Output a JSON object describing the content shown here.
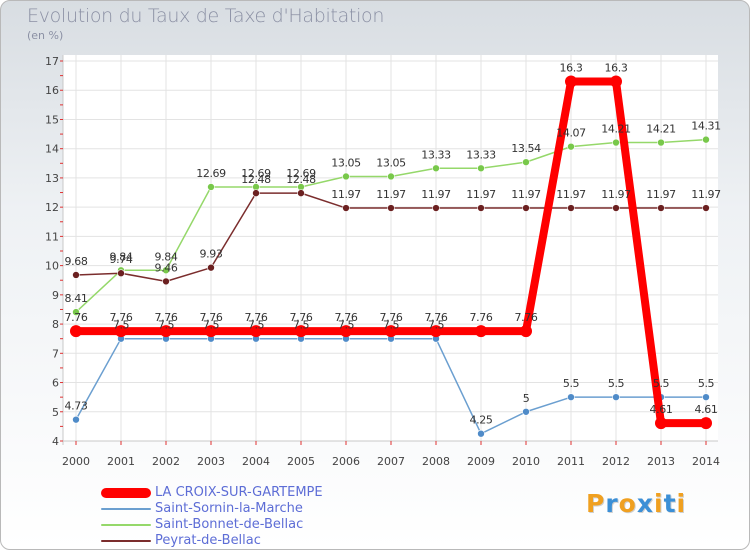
{
  "header": {
    "title": "Evolution du Taux de Taxe d'Habitation",
    "subtitle": "(en %)"
  },
  "brand": {
    "logo_letters": [
      "P",
      "r",
      "o",
      "x",
      "i",
      "t",
      "i"
    ],
    "logo_colors": [
      "#f0a020",
      "#3b8fd6",
      "#f0a020",
      "#3b8fd6",
      "#f0a020",
      "#3b8fd6",
      "#f0a020"
    ]
  },
  "chart_data": {
    "type": "line",
    "title": "Evolution du Taux de Taxe d'Habitation",
    "ylabel": "(en %)",
    "xlabel": "",
    "categories": [
      "2000",
      "2001",
      "2002",
      "2003",
      "2004",
      "2005",
      "2006",
      "2007",
      "2008",
      "2009",
      "2010",
      "2011",
      "2012",
      "2013",
      "2014"
    ],
    "ylim": [
      4,
      17
    ],
    "yticks": [
      4,
      5,
      6,
      7,
      8,
      9,
      10,
      11,
      12,
      13,
      14,
      15,
      16,
      17
    ],
    "grid": true,
    "legend_position": "bottom-left",
    "series": [
      {
        "name": "LA CROIX-SUR-GARTEMPE",
        "color": "#ff0000",
        "values": [
          7.76,
          7.76,
          7.76,
          7.76,
          7.76,
          7.76,
          7.76,
          7.76,
          7.76,
          7.76,
          7.76,
          16.3,
          16.3,
          4.61,
          4.61
        ],
        "labels": [
          "7.76",
          "7.76",
          "7.76",
          "7.76",
          "7.76",
          "7.76",
          "7.76",
          "7.76",
          "7.76",
          "7.76",
          "7.76",
          "16.3",
          "16.3",
          "4.61",
          "4.61"
        ]
      },
      {
        "name": "Saint-Sornin-la-Marche",
        "color": "#6b9fd0",
        "values": [
          4.73,
          7.5,
          7.5,
          7.5,
          7.5,
          7.5,
          7.5,
          7.5,
          7.5,
          4.25,
          5,
          5.5,
          5.5,
          5.5,
          5.5
        ],
        "labels": [
          "4.73",
          "7.5",
          "7.5",
          "7.5",
          "7.5",
          "7.5",
          "7.5",
          "7.5",
          "7.5",
          "4.25",
          "5",
          "5.5",
          "5.5",
          "5.5",
          "5.5"
        ]
      },
      {
        "name": "Saint-Bonnet-de-Bellac",
        "color": "#95d86a",
        "values": [
          8.41,
          9.84,
          9.84,
          12.69,
          12.69,
          12.69,
          13.05,
          13.05,
          13.33,
          13.33,
          13.54,
          14.07,
          14.21,
          14.21,
          14.31
        ],
        "labels": [
          "8.41",
          "9.84",
          "9.84",
          "12.69",
          "12.69",
          "12.69",
          "13.05",
          "13.05",
          "13.33",
          "13.33",
          "13.54",
          "14.07",
          "14.21",
          "14.21",
          "14.31"
        ]
      },
      {
        "name": "Peyrat-de-Bellac",
        "color": "#7b2d2d",
        "values": [
          9.68,
          9.74,
          9.46,
          9.93,
          12.48,
          12.48,
          11.97,
          11.97,
          11.97,
          11.97,
          11.97,
          11.97,
          11.97,
          11.97,
          11.97
        ],
        "labels": [
          "9.68",
          "9.74",
          "9.46",
          "9.93",
          "12.48",
          "12.48",
          "11.97",
          "11.97",
          "11.97",
          "11.97",
          "11.97",
          "11.97",
          "11.97",
          "11.97",
          "11.97"
        ]
      }
    ]
  }
}
